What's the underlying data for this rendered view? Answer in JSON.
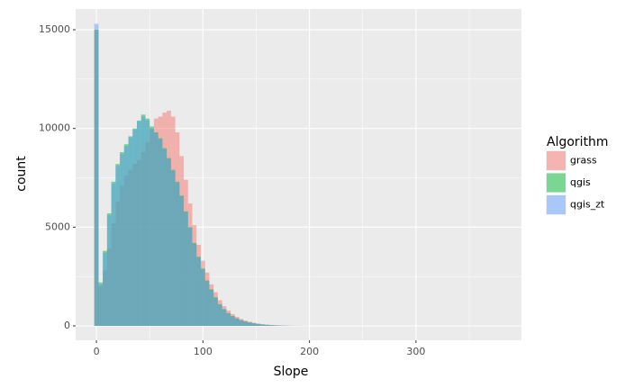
{
  "chart_data": {
    "type": "histogram",
    "x_label": "Slope",
    "y_label": "count",
    "legend_title": "Algorithm",
    "bins": [
      -2,
      2,
      6,
      10,
      14,
      18,
      22,
      26,
      30,
      34,
      38,
      42,
      46,
      50,
      54,
      58,
      62,
      66,
      70,
      74,
      78,
      82,
      86,
      90,
      94,
      98,
      102,
      106,
      110,
      114,
      118,
      122,
      126,
      130,
      134,
      138,
      142,
      146,
      150,
      154,
      158,
      162,
      166,
      170,
      174,
      178,
      182,
      186,
      190,
      194,
      198
    ],
    "series": [
      {
        "name": "grass",
        "color": "#F8766D",
        "values": [
          15000,
          2000,
          2800,
          3900,
          5200,
          6300,
          7100,
          7600,
          7900,
          8200,
          8400,
          8800,
          9300,
          10000,
          10500,
          10600,
          10800,
          10900,
          10600,
          9800,
          8600,
          7400,
          6200,
          5100,
          4100,
          3300,
          2700,
          2100,
          1700,
          1300,
          1000,
          780,
          600,
          460,
          350,
          270,
          210,
          160,
          120,
          90,
          65,
          48,
          35,
          25,
          18,
          12,
          8,
          5,
          3,
          2
        ]
      },
      {
        "name": "qgis",
        "color": "#00BA38",
        "values": [
          15000,
          2200,
          3800,
          5700,
          7300,
          8200,
          8800,
          9200,
          9600,
          10000,
          10400,
          10700,
          10500,
          10100,
          9800,
          9500,
          9000,
          8500,
          7900,
          7300,
          6600,
          5800,
          5000,
          4200,
          3500,
          2900,
          2300,
          1850,
          1450,
          1100,
          850,
          650,
          500,
          380,
          290,
          220,
          170,
          130,
          95,
          70,
          52,
          38,
          27,
          19,
          13,
          9,
          6,
          4,
          3,
          2
        ]
      },
      {
        "name": "qgis_zt",
        "color": "#619CFF",
        "values": [
          15300,
          2100,
          3700,
          5600,
          7200,
          8100,
          8700,
          9100,
          9550,
          9950,
          10350,
          10600,
          10400,
          10000,
          9750,
          9450,
          8950,
          8450,
          7850,
          7250,
          6550,
          5750,
          4950,
          4150,
          3450,
          2850,
          2250,
          1800,
          1400,
          1080,
          830,
          630,
          490,
          370,
          280,
          215,
          165,
          125,
          92,
          68,
          50,
          37,
          26,
          18,
          12,
          8,
          5,
          3,
          2,
          1
        ]
      }
    ],
    "xlim": [
      -19.5,
      399
    ],
    "ylim": [
      -730,
      16050
    ],
    "xticks": [
      0,
      100,
      200,
      300
    ],
    "yticks": [
      0,
      5000,
      10000,
      15000
    ],
    "x_minor_ticks": [
      50,
      150,
      250,
      350
    ],
    "y_minor_ticks": [
      2500,
      7500,
      12500
    ],
    "grid": true,
    "opacity": 0.5
  }
}
